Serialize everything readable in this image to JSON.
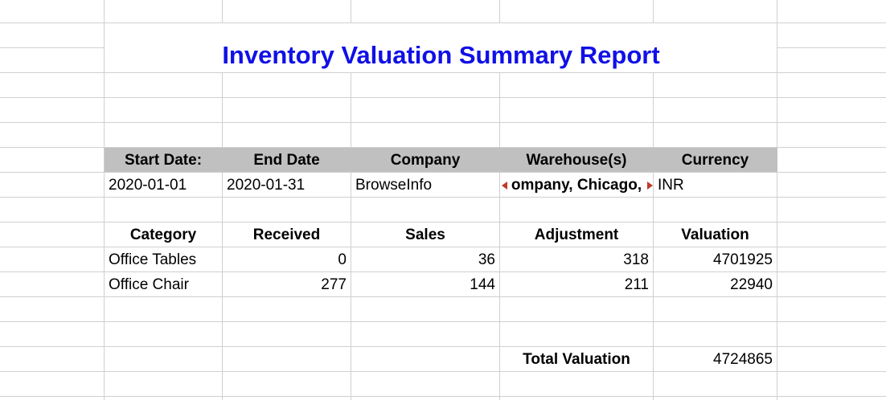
{
  "report": {
    "title": "Inventory Valuation Summary Report"
  },
  "filter_header": {
    "start_date": "Start Date:",
    "end_date": "End Date",
    "company": "Company",
    "warehouses": "Warehouse(s)",
    "currency": "Currency"
  },
  "filter_values": {
    "start_date": "2020-01-01",
    "end_date": "2020-01-31",
    "company": "BrowseInfo",
    "warehouses": "ompany, Chicago,",
    "currency": "INR"
  },
  "table": {
    "columns": [
      "Category",
      "Received",
      "Sales",
      "Adjustment",
      "Valuation"
    ],
    "rows": [
      [
        "Office Tables",
        "0",
        "36",
        "318",
        "4701925"
      ],
      [
        "Office Chair",
        "277",
        "144",
        "211",
        "22940"
      ]
    ]
  },
  "total": {
    "label": "Total Valuation",
    "value": "4724865"
  },
  "colors": {
    "title": "#1010e6",
    "header_band": "#c0c0c0",
    "gridline": "#d0d0d0",
    "overflow_marker": "#c0392b"
  }
}
